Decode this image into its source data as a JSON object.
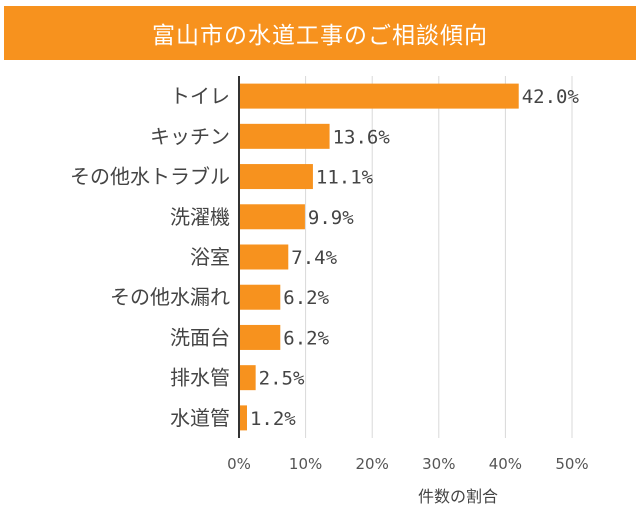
{
  "chart_data": {
    "type": "bar",
    "orientation": "horizontal",
    "title": "富山市の水道工事のご相談傾向",
    "categories": [
      "トイレ",
      "キッチン",
      "その他水トラブル",
      "洗濯機",
      "浴室",
      "その他水漏れ",
      "洗面台",
      "排水管",
      "水道管"
    ],
    "values": [
      42.0,
      13.6,
      11.1,
      9.9,
      7.4,
      6.2,
      6.2,
      2.5,
      1.2
    ],
    "value_labels": [
      "42.0%",
      "13.6%",
      "11.1%",
      "9.9%",
      "7.4%",
      "6.2%",
      "6.2%",
      "2.5%",
      "1.2%"
    ],
    "xlabel": "件数の割合",
    "ylabel": "",
    "xlim": [
      0,
      50
    ],
    "xticks": [
      "0%",
      "10%",
      "20%",
      "30%",
      "40%",
      "50%"
    ],
    "grid": "vertical",
    "legend": "none",
    "bar_color": "#f7921e",
    "title_bg_color": "#f7921e",
    "axis_color": "#333333",
    "grid_color": "#d9d9d9"
  }
}
